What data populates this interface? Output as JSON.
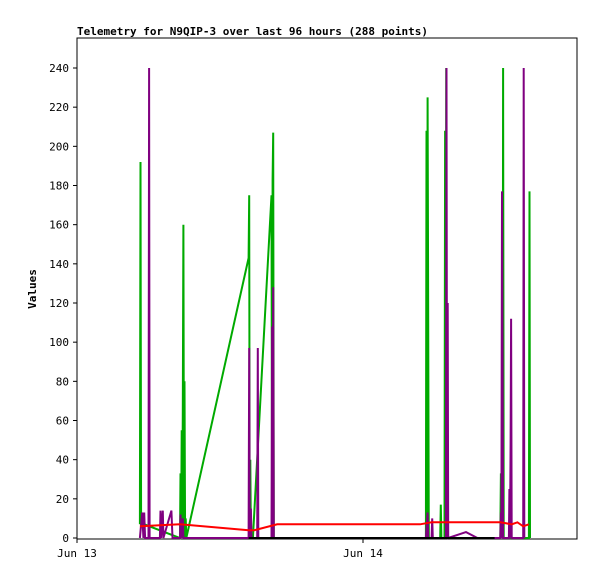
{
  "chart_data": {
    "type": "line",
    "title": "Telemetry for N9QIP-3 over last 96 hours (288 points)",
    "xlabel": "",
    "ylabel": "Values",
    "xlim": [
      -0.15,
      1.8
    ],
    "ylim": [
      0,
      255
    ],
    "x_ticks": [
      {
        "x": 0,
        "label": "Jun 13"
      },
      {
        "x": 1,
        "label": "Jun 14"
      }
    ],
    "y_ticks": [
      0,
      20,
      40,
      60,
      80,
      100,
      120,
      140,
      160,
      180,
      200,
      220,
      240
    ],
    "grid": false,
    "legend": "none",
    "series": [
      {
        "color": "#00aa00",
        "points": [
          [
            0.22,
            7
          ],
          [
            0.222,
            192
          ],
          [
            0.223,
            97
          ],
          [
            0.224,
            7
          ],
          [
            0.226,
            7
          ],
          [
            0.235,
            7
          ],
          [
            0.36,
            0
          ],
          [
            0.362,
            33
          ],
          [
            0.364,
            0
          ],
          [
            0.366,
            55
          ],
          [
            0.368,
            0
          ],
          [
            0.37,
            65
          ],
          [
            0.372,
            160
          ],
          [
            0.374,
            0
          ],
          [
            0.376,
            80
          ],
          [
            0.378,
            0
          ],
          [
            0.38,
            10
          ],
          [
            0.382,
            0
          ],
          [
            0.6,
            143
          ],
          [
            0.602,
            175
          ],
          [
            0.604,
            0
          ],
          [
            0.606,
            40
          ],
          [
            0.608,
            0
          ],
          [
            0.615,
            0
          ],
          [
            0.68,
            175
          ],
          [
            0.682,
            0
          ],
          [
            0.684,
            183
          ],
          [
            0.686,
            207
          ],
          [
            0.688,
            0
          ],
          [
            1.22,
            0
          ],
          [
            1.222,
            208
          ],
          [
            1.224,
            0
          ],
          [
            1.226,
            225
          ],
          [
            1.228,
            112
          ],
          [
            1.23,
            0
          ],
          [
            1.27,
            0
          ],
          [
            1.272,
            17
          ],
          [
            1.274,
            0
          ],
          [
            1.285,
            0
          ],
          [
            1.287,
            208
          ],
          [
            1.289,
            0
          ],
          [
            1.291,
            240
          ],
          [
            1.293,
            0
          ],
          [
            1.3,
            0
          ],
          [
            1.48,
            0
          ],
          [
            1.482,
            33
          ],
          [
            1.484,
            0
          ],
          [
            1.486,
            65
          ],
          [
            1.488,
            0
          ],
          [
            1.49,
            240
          ],
          [
            1.492,
            0
          ],
          [
            1.5,
            0
          ],
          [
            1.58,
            0
          ],
          [
            1.582,
            177
          ],
          [
            1.584,
            0
          ]
        ]
      },
      {
        "color": "#800080",
        "points": [
          [
            0.22,
            0
          ],
          [
            0.228,
            13
          ],
          [
            0.232,
            0
          ],
          [
            0.235,
            13
          ],
          [
            0.238,
            0
          ],
          [
            0.25,
            0
          ],
          [
            0.252,
            240
          ],
          [
            0.254,
            0
          ],
          [
            0.29,
            0
          ],
          [
            0.292,
            14
          ],
          [
            0.294,
            0
          ],
          [
            0.3,
            14
          ],
          [
            0.302,
            0
          ],
          [
            0.33,
            14
          ],
          [
            0.334,
            0
          ],
          [
            0.36,
            0
          ],
          [
            0.362,
            12
          ],
          [
            0.364,
            0
          ],
          [
            0.37,
            10
          ],
          [
            0.372,
            0
          ],
          [
            0.6,
            0
          ],
          [
            0.602,
            97
          ],
          [
            0.604,
            0
          ],
          [
            0.608,
            15
          ],
          [
            0.61,
            0
          ],
          [
            0.63,
            0
          ],
          [
            0.632,
            97
          ],
          [
            0.634,
            0
          ],
          [
            0.68,
            0
          ],
          [
            0.682,
            108
          ],
          [
            0.684,
            0
          ],
          [
            0.686,
            128
          ],
          [
            0.688,
            0
          ],
          [
            1.22,
            0
          ],
          [
            1.226,
            13
          ],
          [
            1.228,
            0
          ],
          [
            1.24,
            0
          ],
          [
            1.242,
            10
          ],
          [
            1.244,
            0
          ],
          [
            1.29,
            0
          ],
          [
            1.292,
            240
          ],
          [
            1.294,
            0
          ],
          [
            1.296,
            120
          ],
          [
            1.298,
            0
          ],
          [
            1.36,
            3
          ],
          [
            1.4,
            0
          ],
          [
            1.48,
            0
          ],
          [
            1.482,
            13
          ],
          [
            1.484,
            0
          ],
          [
            1.486,
            177
          ],
          [
            1.488,
            88
          ],
          [
            1.49,
            0
          ],
          [
            1.51,
            0
          ],
          [
            1.512,
            25
          ],
          [
            1.514,
            0
          ],
          [
            1.516,
            48
          ],
          [
            1.518,
            112
          ],
          [
            1.52,
            0
          ],
          [
            1.56,
            0
          ],
          [
            1.562,
            240
          ],
          [
            1.564,
            0
          ]
        ]
      },
      {
        "color": "#ff0000",
        "points": [
          [
            0.22,
            6
          ],
          [
            0.36,
            7
          ],
          [
            0.6,
            4
          ],
          [
            0.62,
            4
          ],
          [
            0.7,
            7
          ],
          [
            1.0,
            7
          ],
          [
            1.2,
            7
          ],
          [
            1.24,
            8
          ],
          [
            1.3,
            8
          ],
          [
            1.48,
            8
          ],
          [
            1.52,
            7
          ],
          [
            1.54,
            8
          ],
          [
            1.56,
            6
          ],
          [
            1.58,
            7
          ]
        ]
      },
      {
        "color": "#000000",
        "points": [
          [
            0.6,
            0
          ],
          [
            1.2,
            0
          ],
          [
            1.3,
            0
          ],
          [
            1.46,
            0
          ]
        ]
      }
    ]
  }
}
